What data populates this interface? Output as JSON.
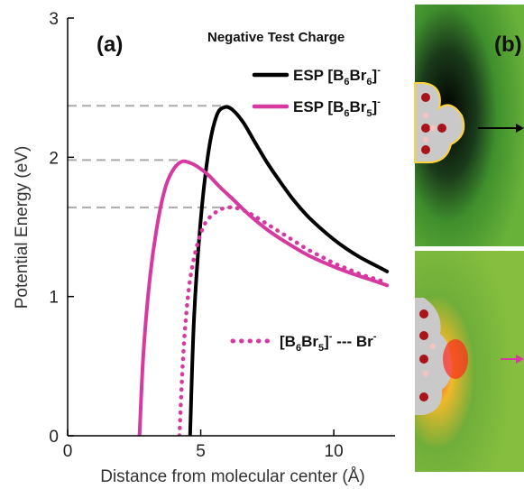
{
  "chart_data": {
    "type": "line",
    "panel_label": "(a)",
    "panel_label_b": "(b)",
    "legend_title": "Negative Test Charge",
    "xlabel": "Distance from molecular center (Å)",
    "ylabel": "Potential Energy (eV)",
    "xlim": [
      0,
      12.3
    ],
    "ylim": [
      0,
      3
    ],
    "xticks": [
      0,
      5,
      10
    ],
    "yticks": [
      0,
      1,
      2,
      3
    ],
    "grid": false,
    "legend_position": "top-right",
    "series": [
      {
        "name": "ESP [B6Br6]-",
        "legend": {
          "base": "ESP [B",
          "n1": "6",
          "mid": "Br",
          "n2": "6",
          "end": "]",
          "charge": "-"
        },
        "color": "#000000",
        "dash": "solid",
        "x": [
          4.6,
          4.75,
          5.0,
          5.3,
          5.6,
          5.9,
          6.2,
          6.6,
          7.0,
          7.5,
          8.0,
          8.5,
          9.0,
          9.5,
          10.0,
          10.5,
          11.0,
          11.5,
          12.0
        ],
        "y": [
          0.0,
          0.85,
          1.55,
          2.05,
          2.3,
          2.36,
          2.34,
          2.25,
          2.12,
          1.96,
          1.82,
          1.69,
          1.58,
          1.49,
          1.41,
          1.34,
          1.28,
          1.23,
          1.18
        ]
      },
      {
        "name": "ESP [B6Br5]-",
        "legend": {
          "base": "ESP [B",
          "n1": "6",
          "mid": "Br",
          "n2": "5",
          "end": "]",
          "charge": "-"
        },
        "color": "#d63aa0",
        "dash": "solid",
        "x": [
          2.7,
          2.85,
          3.1,
          3.4,
          3.7,
          4.0,
          4.3,
          4.6,
          4.9,
          5.3,
          5.7,
          6.2,
          6.8,
          7.5,
          8.2,
          9.0,
          9.8,
          10.6,
          11.4,
          12.0
        ],
        "y": [
          0.0,
          0.6,
          1.15,
          1.55,
          1.8,
          1.92,
          1.97,
          1.96,
          1.93,
          1.87,
          1.79,
          1.7,
          1.59,
          1.48,
          1.39,
          1.3,
          1.23,
          1.17,
          1.12,
          1.08
        ]
      },
      {
        "name": "[B6Br5]- --- Br-",
        "legend": {
          "base": "[B",
          "n1": "6",
          "mid": "Br",
          "n2": "5",
          "end": "]",
          "charge": "-",
          "tail": " --- Br",
          "tail_charge": "-"
        },
        "color": "#d63aa0",
        "dash": "dotted",
        "x": [
          4.2,
          4.35,
          4.55,
          4.8,
          5.1,
          5.4,
          5.8,
          6.2,
          6.6,
          7.0,
          7.5,
          8.0,
          8.5,
          9.0,
          9.5,
          10.0,
          10.5,
          11.0,
          11.5,
          12.0
        ],
        "y": [
          0.0,
          0.6,
          1.05,
          1.32,
          1.5,
          1.58,
          1.63,
          1.64,
          1.62,
          1.58,
          1.52,
          1.46,
          1.4,
          1.34,
          1.29,
          1.24,
          1.2,
          1.16,
          1.13,
          1.1
        ]
      }
    ],
    "reference_lines": [
      {
        "y": 2.37,
        "color": "#aaaaaa"
      },
      {
        "y": 1.98,
        "color": "#aaaaaa"
      },
      {
        "y": 1.64,
        "color": "#aaaaaa"
      }
    ]
  }
}
